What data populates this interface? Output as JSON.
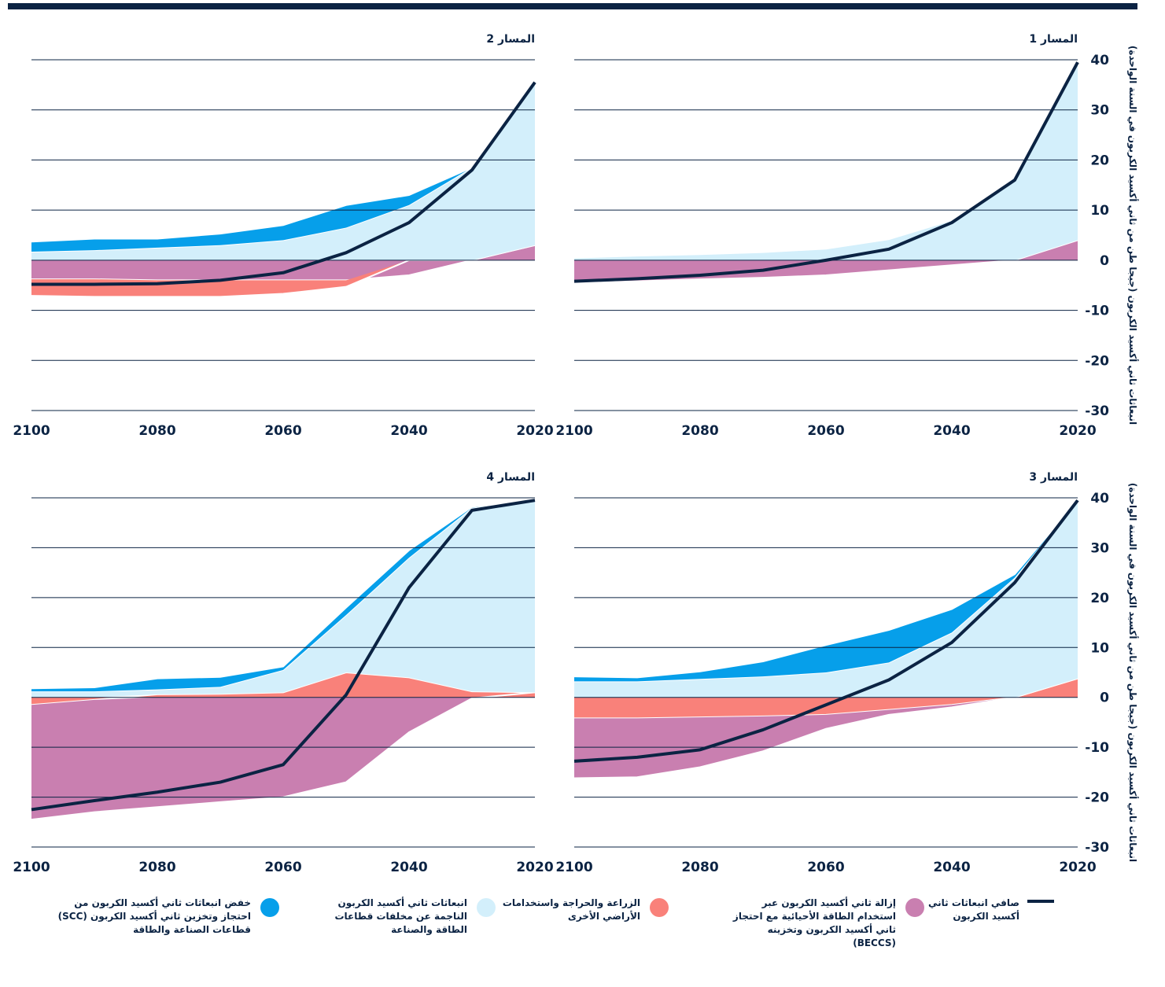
{
  "legend": [
    {
      "label": "صافي انبعاثات ثاني أكسيد الكربون",
      "color": "#0b2343",
      "marker": "line"
    },
    {
      "label": "إزالة ثاني أكسيد الكربون عبر استخدام الطاقة الأحيائية مع احتجاز ثاني أكسيد الكربون وتخزينه (BECCS)",
      "color": "#c97fb0",
      "marker": "dot"
    },
    {
      "label": "الزراعة والحراجة واستخدامات الأراضي الأخرى",
      "color": "#f9817a",
      "marker": "dot"
    },
    {
      "label": "انبعاثات ثاني أكسيد الكربون الناجمة عن مخلفات قطاعات الطاقة والصناعة",
      "color": "#d3effb",
      "marker": "dot"
    },
    {
      "label": "خفض انبعاثات ثاني أكسيد الكربون من احتجاز وتخزين ثاني أكسيد الكربون (SCC) قطاعات الصناعة والطاقة",
      "color": "#069fea",
      "marker": "dot"
    }
  ],
  "chart_data": [
    {
      "type": "stacked_area",
      "title": "المسار 1",
      "x": [
        2020,
        2030,
        2040,
        2050,
        2060,
        2070,
        2080,
        2090,
        2100
      ],
      "xlim": [
        2020,
        2100
      ],
      "x_reversed": true,
      "xticks": [
        2100,
        2080,
        2060,
        2040,
        2020
      ],
      "ylim": [
        -30,
        40
      ],
      "yticks": [
        -30,
        -20,
        -10,
        0,
        10,
        20,
        30,
        40
      ],
      "y_axis_labels": true,
      "y_label": "انبعاثات ثاني أكسيد الكربون (جيجا طن من ثاني أكسيد الكربون في السنة الواحدة)",
      "grid": true,
      "series": [
        {
          "kind": "area",
          "color": "#c97fb0",
          "values": [
            4,
            0,
            -1,
            -2,
            -3,
            -3.5,
            -3.8,
            -4.2,
            -4.6
          ]
        },
        {
          "kind": "area",
          "color": "#d3effb",
          "values": [
            35.5,
            16.5,
            8,
            4.2,
            2.3,
            1.6,
            1.2,
            0.9,
            0.5
          ]
        },
        {
          "kind": "line",
          "color": "#0b2343",
          "values": [
            39.5,
            16,
            7.5,
            2.2,
            0,
            -2,
            -3,
            -3.7,
            -4.2
          ]
        }
      ]
    },
    {
      "type": "stacked_area",
      "title": "المسار 2",
      "x": [
        2020,
        2030,
        2040,
        2050,
        2060,
        2070,
        2080,
        2090,
        2100
      ],
      "xlim": [
        2020,
        2100
      ],
      "x_reversed": true,
      "xticks": [
        2100,
        2080,
        2060,
        2040,
        2020
      ],
      "ylim": [
        -30,
        40
      ],
      "yticks": [
        -30,
        -20,
        -10,
        0,
        10,
        20,
        30,
        40
      ],
      "y_axis_labels": false,
      "grid": true,
      "series": [
        {
          "kind": "area",
          "color": "#c97fb0",
          "values": [
            3,
            0,
            -3,
            -4,
            -4,
            -4,
            -4,
            -3.8,
            -3.8
          ]
        },
        {
          "kind": "area",
          "color": "#f9817a",
          "values": [
            0,
            0,
            0,
            -1.3,
            -2.7,
            -3.3,
            -3.3,
            -3.5,
            -3.3
          ]
        },
        {
          "kind": "area",
          "color": "#d3effb",
          "values": [
            32.5,
            18.5,
            11,
            6.5,
            4,
            3,
            2.5,
            2,
            1.7
          ]
        },
        {
          "kind": "area",
          "color": "#069fea",
          "values": [
            0,
            0,
            2,
            4.5,
            3,
            2.3,
            1.8,
            2.3,
            2
          ]
        },
        {
          "kind": "line",
          "color": "#0b2343",
          "values": [
            35.5,
            18,
            7.5,
            1.5,
            -2.5,
            -4,
            -4.7,
            -4.8,
            -4.8
          ]
        }
      ]
    },
    {
      "type": "stacked_area",
      "title": "المسار 3",
      "x": [
        2020,
        2030,
        2040,
        2050,
        2060,
        2070,
        2080,
        2090,
        2100
      ],
      "xlim": [
        2020,
        2100
      ],
      "x_reversed": true,
      "xticks": [
        2100,
        2080,
        2060,
        2040,
        2020
      ],
      "ylim": [
        -30,
        40
      ],
      "yticks": [
        -30,
        -20,
        -10,
        0,
        10,
        20,
        30,
        40
      ],
      "y_axis_labels": true,
      "y_label": "انبعاثات ثاني أكسيد الكربون (جيجا طن من ثاني أكسيد الكربون في السنة الواحدة)",
      "grid": true,
      "series": [
        {
          "kind": "area",
          "color": "#f9817a",
          "values": [
            3.8,
            0,
            -1.5,
            -2.5,
            -3.5,
            -3.8,
            -4,
            -4.2,
            -4.2
          ]
        },
        {
          "kind": "area",
          "color": "#c97fb0",
          "values": [
            0,
            0,
            -0.5,
            -1,
            -2.8,
            -7,
            -10,
            -11.8,
            -12
          ]
        },
        {
          "kind": "area",
          "color": "#d3effb",
          "values": [
            35.7,
            24,
            13,
            7,
            5,
            4.2,
            3.7,
            3.2,
            3.2
          ]
        },
        {
          "kind": "area",
          "color": "#069fea",
          "values": [
            0,
            0.7,
            4.7,
            6.5,
            5.5,
            3,
            1.5,
            0.8,
            1
          ]
        },
        {
          "kind": "line",
          "color": "#0b2343",
          "values": [
            39.5,
            23,
            11,
            3.5,
            -1.5,
            -6.5,
            -10.5,
            -12,
            -12.8
          ]
        }
      ]
    },
    {
      "type": "stacked_area",
      "title": "المسار 4",
      "x": [
        2020,
        2030,
        2040,
        2050,
        2060,
        2070,
        2080,
        2090,
        2100
      ],
      "xlim": [
        2020,
        2100
      ],
      "x_reversed": true,
      "xticks": [
        2100,
        2080,
        2060,
        2040,
        2020
      ],
      "ylim": [
        -30,
        40
      ],
      "yticks": [
        -30,
        -20,
        -10,
        0,
        10,
        20,
        30,
        40
      ],
      "y_axis_labels": false,
      "grid": true,
      "series": [
        {
          "kind": "area",
          "color": "#f9817a",
          "values": [
            1,
            1.2,
            4,
            5,
            1,
            0.7,
            0.6,
            -0.5,
            -1.5
          ]
        },
        {
          "kind": "area",
          "color": "#c97fb0",
          "values": [
            0,
            -0.2,
            -7,
            -17,
            -20,
            -21,
            -22,
            -22.5,
            -23
          ]
        },
        {
          "kind": "area",
          "color": "#d3effb",
          "values": [
            38.5,
            36.8,
            24,
            11.5,
            4.5,
            1.4,
            1,
            1.2,
            1.2
          ]
        },
        {
          "kind": "area",
          "color": "#069fea",
          "values": [
            0,
            0.2,
            1.5,
            1.5,
            0.7,
            2,
            2.2,
            0.8,
            0.6
          ]
        },
        {
          "kind": "line",
          "color": "#0b2343",
          "values": [
            39.5,
            37.5,
            22,
            0.5,
            -13.5,
            -17,
            -19,
            -20.7,
            -22.5
          ]
        }
      ]
    }
  ]
}
